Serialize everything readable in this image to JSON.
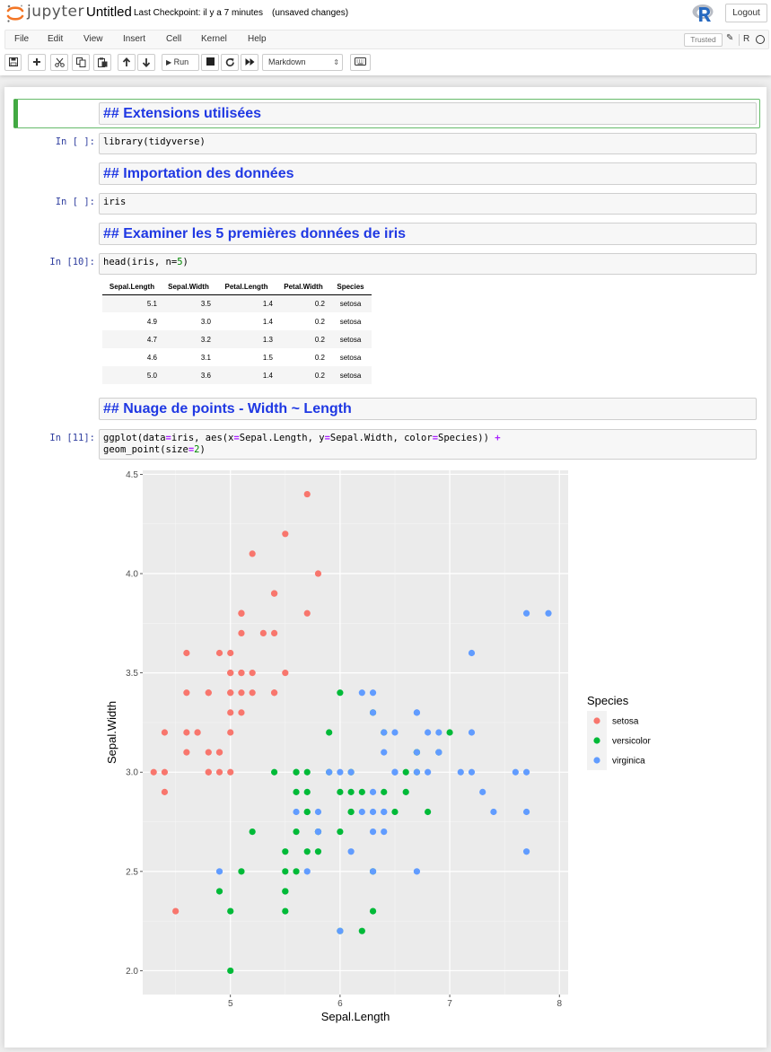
{
  "header": {
    "logo_text": "jupyter",
    "notebook_name": "Untitled",
    "checkpoint": "Last Checkpoint: il y a 7 minutes",
    "unsaved": "(unsaved changes)",
    "logout_label": "Logout",
    "trusted_label": "Trusted",
    "kernel_name": "R"
  },
  "menu": [
    "File",
    "Edit",
    "View",
    "Insert",
    "Cell",
    "Kernel",
    "Help"
  ],
  "toolbar": {
    "run_label": "Run",
    "cell_type": "Markdown",
    "icons": [
      "save-icon",
      "plus-icon",
      "cut-icon",
      "copy-icon",
      "paste-icon",
      "arrow-up-icon",
      "arrow-down-icon",
      "run-icon",
      "stop-icon",
      "restart-icon",
      "fast-forward-icon",
      "keyboard-icon"
    ]
  },
  "cells": {
    "md1": "## Extensions utilisées",
    "code1": {
      "prompt": "In [ ]:",
      "code": "library(tidyverse)"
    },
    "md2": "## Importation des données",
    "code2": {
      "prompt": "In [ ]:",
      "code": "iris"
    },
    "md3": "## Examiner les 5 premières données de iris",
    "code3": {
      "prompt": "In [10]:",
      "code_fn": "head(iris, n=",
      "code_num": "5",
      "code_end": ")"
    },
    "md4": "## Nuage de points - Width ~ Length",
    "code4": {
      "prompt": "In [11]:",
      "line1_a": "ggplot(data",
      "line1_b": "iris, aes(x",
      "line1_c": "Sepal.Length, y",
      "line1_d": "Sepal.Width, color",
      "line1_e": "Species)) ",
      "line2_a": "geom_point(size",
      "line2_num": "2",
      "line2_end": ")",
      "eq": "=",
      "plus": "+"
    }
  },
  "table": {
    "headers": [
      "Sepal.Length",
      "Sepal.Width",
      "Petal.Length",
      "Petal.Width",
      "Species"
    ],
    "rows": [
      [
        "5.1",
        "3.5",
        "1.4",
        "0.2",
        "setosa"
      ],
      [
        "4.9",
        "3.0",
        "1.4",
        "0.2",
        "setosa"
      ],
      [
        "4.7",
        "3.2",
        "1.3",
        "0.2",
        "setosa"
      ],
      [
        "4.6",
        "3.1",
        "1.5",
        "0.2",
        "setosa"
      ],
      [
        "5.0",
        "3.6",
        "1.4",
        "0.2",
        "setosa"
      ]
    ]
  },
  "chart_data": {
    "type": "scatter",
    "xlabel": "Sepal.Length",
    "ylabel": "Sepal.Width",
    "xlim": [
      4.2,
      8.08
    ],
    "ylim": [
      1.88,
      4.52
    ],
    "xticks": [
      "5",
      "6",
      "7",
      "8"
    ],
    "yticks": [
      "2.0",
      "2.5",
      "3.0",
      "3.5",
      "4.0",
      "4.5"
    ],
    "legend_title": "Species",
    "legend_position": "right",
    "background": "#ebebeb",
    "series": [
      {
        "name": "setosa",
        "color": "#f8766d",
        "points": [
          [
            5.1,
            3.5
          ],
          [
            4.9,
            3.0
          ],
          [
            4.7,
            3.2
          ],
          [
            4.6,
            3.1
          ],
          [
            5.0,
            3.6
          ],
          [
            5.4,
            3.9
          ],
          [
            4.6,
            3.4
          ],
          [
            5.0,
            3.4
          ],
          [
            4.4,
            2.9
          ],
          [
            4.9,
            3.1
          ],
          [
            5.4,
            3.7
          ],
          [
            4.8,
            3.4
          ],
          [
            4.8,
            3.0
          ],
          [
            4.3,
            3.0
          ],
          [
            5.8,
            4.0
          ],
          [
            5.7,
            4.4
          ],
          [
            5.4,
            3.9
          ],
          [
            5.1,
            3.5
          ],
          [
            5.7,
            3.8
          ],
          [
            5.1,
            3.8
          ],
          [
            5.4,
            3.4
          ],
          [
            5.1,
            3.7
          ],
          [
            4.6,
            3.6
          ],
          [
            5.1,
            3.3
          ],
          [
            4.8,
            3.4
          ],
          [
            5.0,
            3.0
          ],
          [
            5.0,
            3.4
          ],
          [
            5.2,
            3.5
          ],
          [
            5.2,
            3.4
          ],
          [
            4.7,
            3.2
          ],
          [
            4.8,
            3.1
          ],
          [
            5.4,
            3.4
          ],
          [
            5.2,
            4.1
          ],
          [
            5.5,
            4.2
          ],
          [
            4.9,
            3.1
          ],
          [
            5.0,
            3.2
          ],
          [
            5.5,
            3.5
          ],
          [
            4.9,
            3.6
          ],
          [
            4.4,
            3.0
          ],
          [
            5.1,
            3.4
          ],
          [
            5.0,
            3.5
          ],
          [
            4.5,
            2.3
          ],
          [
            4.4,
            3.2
          ],
          [
            5.0,
            3.5
          ],
          [
            5.1,
            3.8
          ],
          [
            4.8,
            3.0
          ],
          [
            5.1,
            3.8
          ],
          [
            4.6,
            3.2
          ],
          [
            5.3,
            3.7
          ],
          [
            5.0,
            3.3
          ]
        ]
      },
      {
        "name": "versicolor",
        "color": "#00ba38",
        "points": [
          [
            7.0,
            3.2
          ],
          [
            6.4,
            3.2
          ],
          [
            6.9,
            3.1
          ],
          [
            5.5,
            2.3
          ],
          [
            6.5,
            2.8
          ],
          [
            5.7,
            2.8
          ],
          [
            6.3,
            3.3
          ],
          [
            4.9,
            2.4
          ],
          [
            6.6,
            2.9
          ],
          [
            5.2,
            2.7
          ],
          [
            5.0,
            2.0
          ],
          [
            5.9,
            3.0
          ],
          [
            6.0,
            2.2
          ],
          [
            6.1,
            2.9
          ],
          [
            5.6,
            2.9
          ],
          [
            6.7,
            3.1
          ],
          [
            5.6,
            3.0
          ],
          [
            5.8,
            2.7
          ],
          [
            6.2,
            2.2
          ],
          [
            5.6,
            2.5
          ],
          [
            5.9,
            3.2
          ],
          [
            6.1,
            2.8
          ],
          [
            6.3,
            2.5
          ],
          [
            6.1,
            2.8
          ],
          [
            6.4,
            2.9
          ],
          [
            6.6,
            3.0
          ],
          [
            6.8,
            2.8
          ],
          [
            6.7,
            3.0
          ],
          [
            6.0,
            2.9
          ],
          [
            5.7,
            2.6
          ],
          [
            5.5,
            2.4
          ],
          [
            5.5,
            2.4
          ],
          [
            5.8,
            2.7
          ],
          [
            6.0,
            2.7
          ],
          [
            5.4,
            3.0
          ],
          [
            6.0,
            3.4
          ],
          [
            6.7,
            3.1
          ],
          [
            6.3,
            2.3
          ],
          [
            5.6,
            3.0
          ],
          [
            5.5,
            2.5
          ],
          [
            5.5,
            2.6
          ],
          [
            6.1,
            3.0
          ],
          [
            5.8,
            2.6
          ],
          [
            5.0,
            2.3
          ],
          [
            5.6,
            2.7
          ],
          [
            5.7,
            3.0
          ],
          [
            5.7,
            2.9
          ],
          [
            6.2,
            2.9
          ],
          [
            5.1,
            2.5
          ],
          [
            5.7,
            2.8
          ]
        ]
      },
      {
        "name": "virginica",
        "color": "#619cff",
        "points": [
          [
            6.3,
            3.3
          ],
          [
            5.8,
            2.7
          ],
          [
            7.1,
            3.0
          ],
          [
            6.3,
            2.9
          ],
          [
            6.5,
            3.0
          ],
          [
            7.6,
            3.0
          ],
          [
            4.9,
            2.5
          ],
          [
            7.3,
            2.9
          ],
          [
            6.7,
            2.5
          ],
          [
            7.2,
            3.6
          ],
          [
            6.5,
            3.2
          ],
          [
            6.4,
            2.7
          ],
          [
            6.8,
            3.0
          ],
          [
            5.7,
            2.5
          ],
          [
            5.8,
            2.8
          ],
          [
            6.4,
            3.2
          ],
          [
            6.5,
            3.0
          ],
          [
            7.7,
            3.8
          ],
          [
            7.7,
            2.6
          ],
          [
            6.0,
            2.2
          ],
          [
            6.9,
            3.2
          ],
          [
            5.6,
            2.8
          ],
          [
            7.7,
            2.8
          ],
          [
            6.3,
            2.7
          ],
          [
            6.7,
            3.3
          ],
          [
            7.2,
            3.2
          ],
          [
            6.2,
            2.8
          ],
          [
            6.1,
            3.0
          ],
          [
            6.4,
            2.8
          ],
          [
            7.2,
            3.0
          ],
          [
            7.4,
            2.8
          ],
          [
            7.9,
            3.8
          ],
          [
            6.4,
            2.8
          ],
          [
            6.3,
            2.8
          ],
          [
            6.1,
            2.6
          ],
          [
            7.7,
            3.0
          ],
          [
            6.3,
            3.4
          ],
          [
            6.4,
            3.1
          ],
          [
            6.0,
            3.0
          ],
          [
            6.9,
            3.1
          ],
          [
            6.7,
            3.1
          ],
          [
            6.9,
            3.1
          ],
          [
            5.8,
            2.7
          ],
          [
            6.8,
            3.2
          ],
          [
            6.7,
            3.3
          ],
          [
            6.7,
            3.0
          ],
          [
            6.3,
            2.5
          ],
          [
            6.5,
            3.0
          ],
          [
            6.2,
            3.4
          ],
          [
            5.9,
            3.0
          ]
        ]
      }
    ]
  }
}
